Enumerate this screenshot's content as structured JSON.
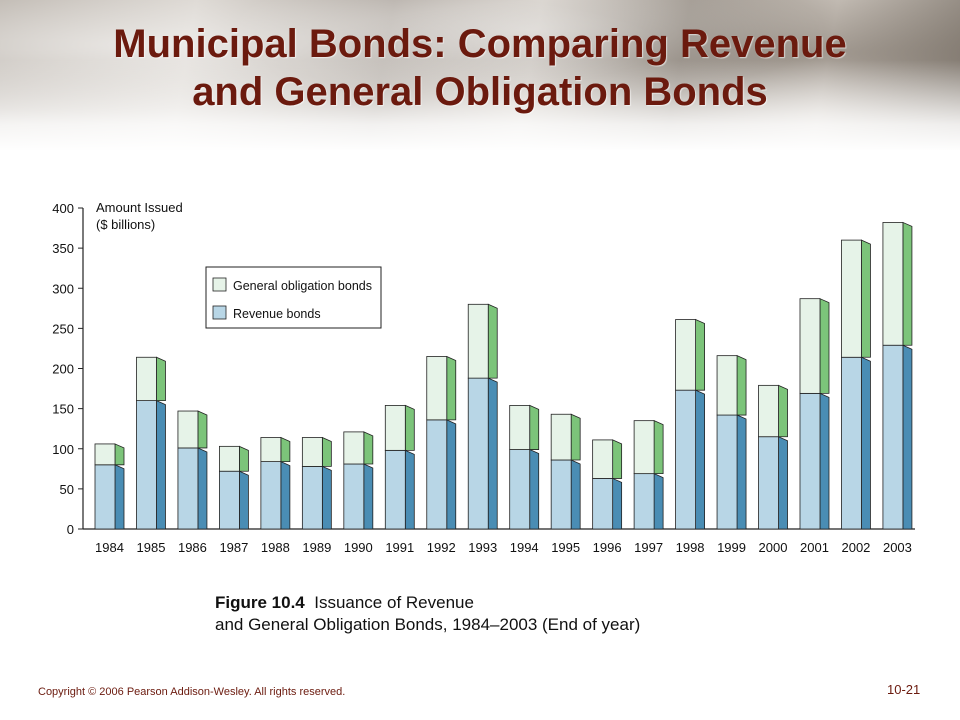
{
  "slide": {
    "title_line1": "Municipal Bonds: Comparing Revenue",
    "title_line2": "and General Obligation Bonds",
    "caption_figure": "Figure 10.4",
    "caption_text_line1": "Issuance of Revenue",
    "caption_text_line2": "and General Obligation Bonds, 1984–2003 (End of year)",
    "copyright": "Copyright © 2006 Pearson Addison-Wesley. All rights reserved.",
    "page_number": "10-21"
  },
  "colors": {
    "title": "#6b1a0e",
    "revenue_front": "#b8d6e6",
    "revenue_side": "#4a8db4",
    "general_front": "#e6f3e8",
    "general_side": "#7cc47a",
    "outline": "#222222"
  },
  "chart_data": {
    "type": "bar",
    "stacked": true,
    "ylabel": "Amount Issued\n($ billions)",
    "ylim": [
      0,
      400
    ],
    "yticks": [
      0,
      50,
      100,
      150,
      200,
      250,
      300,
      350,
      400
    ],
    "categories": [
      "1984",
      "1985",
      "1986",
      "1987",
      "1988",
      "1989",
      "1990",
      "1991",
      "1992",
      "1993",
      "1994",
      "1995",
      "1996",
      "1997",
      "1998",
      "1999",
      "2000",
      "2001",
      "2002",
      "2003"
    ],
    "series": [
      {
        "name": "Revenue bonds",
        "values": [
          80,
          160,
          101,
          72,
          84,
          78,
          81,
          98,
          136,
          188,
          99,
          86,
          63,
          69,
          173,
          142,
          115,
          169,
          214,
          229
        ]
      },
      {
        "name": "General obligation bonds",
        "values": [
          26,
          54,
          46,
          31,
          30,
          36,
          40,
          56,
          79,
          92,
          55,
          57,
          48,
          66,
          88,
          74,
          64,
          118,
          146,
          153
        ]
      }
    ],
    "legend": {
      "position": "top-left",
      "entries": [
        "General obligation bonds",
        "Revenue bonds"
      ]
    },
    "grid": false
  }
}
